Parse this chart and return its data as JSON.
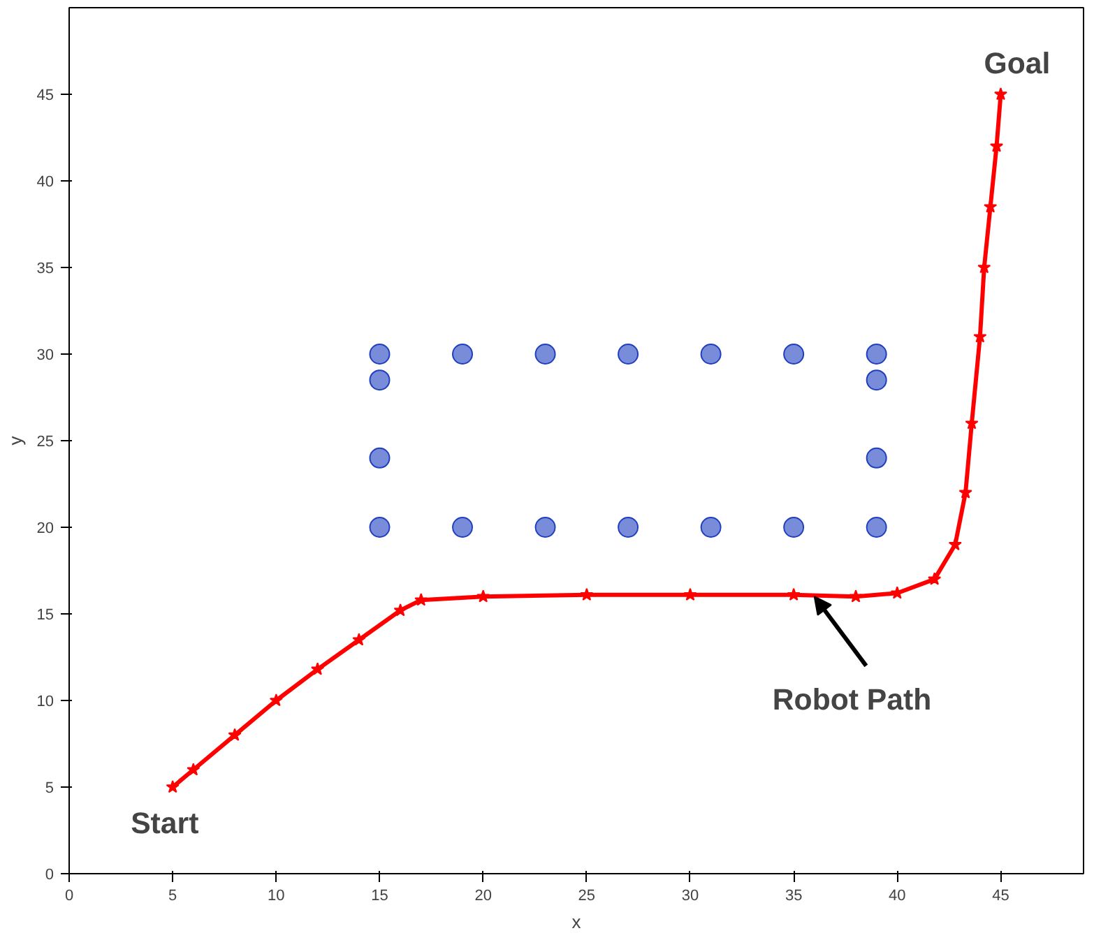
{
  "chart_data": {
    "type": "line",
    "xlabel": "x",
    "ylabel": "y",
    "xlim": [
      0,
      49
    ],
    "ylim": [
      0,
      50
    ],
    "xticks": [
      0,
      5,
      10,
      15,
      20,
      25,
      30,
      35,
      40,
      45
    ],
    "yticks": [
      0,
      5,
      10,
      15,
      20,
      25,
      30,
      35,
      40,
      45
    ],
    "grid": false,
    "series": [
      {
        "type": "scatter",
        "marker": "circle",
        "color": "#1f3fbf",
        "x": [
          15,
          19,
          23,
          27,
          31,
          35,
          39,
          15,
          19,
          23,
          27,
          31,
          35,
          39,
          15,
          15,
          39,
          39
        ],
        "values": [
          20,
          20,
          20,
          20,
          20,
          20,
          20,
          30,
          30,
          30,
          30,
          30,
          30,
          30,
          28.5,
          24,
          28.5,
          24
        ]
      },
      {
        "marker": "star",
        "color": "#ff0000",
        "x": [
          5,
          6,
          8,
          10,
          12,
          14,
          16,
          17,
          20,
          25,
          30,
          35,
          38,
          40,
          41.8,
          42.8,
          43.3,
          43.6,
          44,
          44.2,
          44.5,
          44.8,
          45
        ],
        "values": [
          5,
          6,
          8,
          10,
          11.8,
          13.5,
          15.2,
          15.8,
          16,
          16.1,
          16.1,
          16.1,
          16,
          16.2,
          17,
          19,
          22,
          26,
          31,
          35,
          38.5,
          42,
          45
        ]
      }
    ],
    "annotations": [
      {
        "text": "Goal",
        "x": 45,
        "y": 45
      },
      {
        "text": "Start",
        "x": 5,
        "y": 5
      },
      {
        "text": "Robot Path",
        "x": 36,
        "y": 16
      }
    ]
  }
}
